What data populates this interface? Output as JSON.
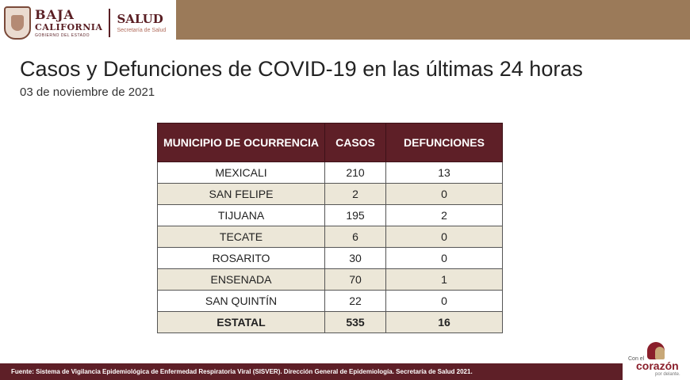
{
  "header": {
    "gov_line1": "BAJA",
    "gov_line2": "CALIFORNIA",
    "gov_line3": "GOBIERNO DEL ESTADO",
    "salud_main": "SALUD",
    "salud_sub": "Secretaría de Salud",
    "band_color": "#9b7a59",
    "brand_color": "#5e1f27"
  },
  "title": "Casos y Defunciones de COVID-19 en las últimas 24 horas",
  "date": "03 de noviembre de 2021",
  "table": {
    "headers": [
      "MUNICIPIO DE OCURRENCIA",
      "CASOS",
      "DEFUNCIONES"
    ],
    "rows": [
      {
        "municipio": "MEXICALI",
        "casos": "210",
        "defunciones": "13"
      },
      {
        "municipio": "SAN FELIPE",
        "casos": "2",
        "defunciones": "0"
      },
      {
        "municipio": "TIJUANA",
        "casos": "195",
        "defunciones": "2"
      },
      {
        "municipio": "TECATE",
        "casos": "6",
        "defunciones": "0"
      },
      {
        "municipio": "ROSARITO",
        "casos": "30",
        "defunciones": "0"
      },
      {
        "municipio": "ENSENADA",
        "casos": "70",
        "defunciones": "1"
      },
      {
        "municipio": "SAN QUINTÍN",
        "casos": "22",
        "defunciones": "0"
      }
    ],
    "total": {
      "municipio": "ESTATAL",
      "casos": "535",
      "defunciones": "16"
    }
  },
  "footer": {
    "source": "Fuente: Sistema de Vigilancia Epidemiológica de Enfermedad Respiratoria Viral (SISVER). Dirección General de Epidemiología. Secretaría de Salud 2021."
  },
  "slogan": {
    "line1": "Con el",
    "line2": "corazón",
    "line3": "por delante."
  }
}
